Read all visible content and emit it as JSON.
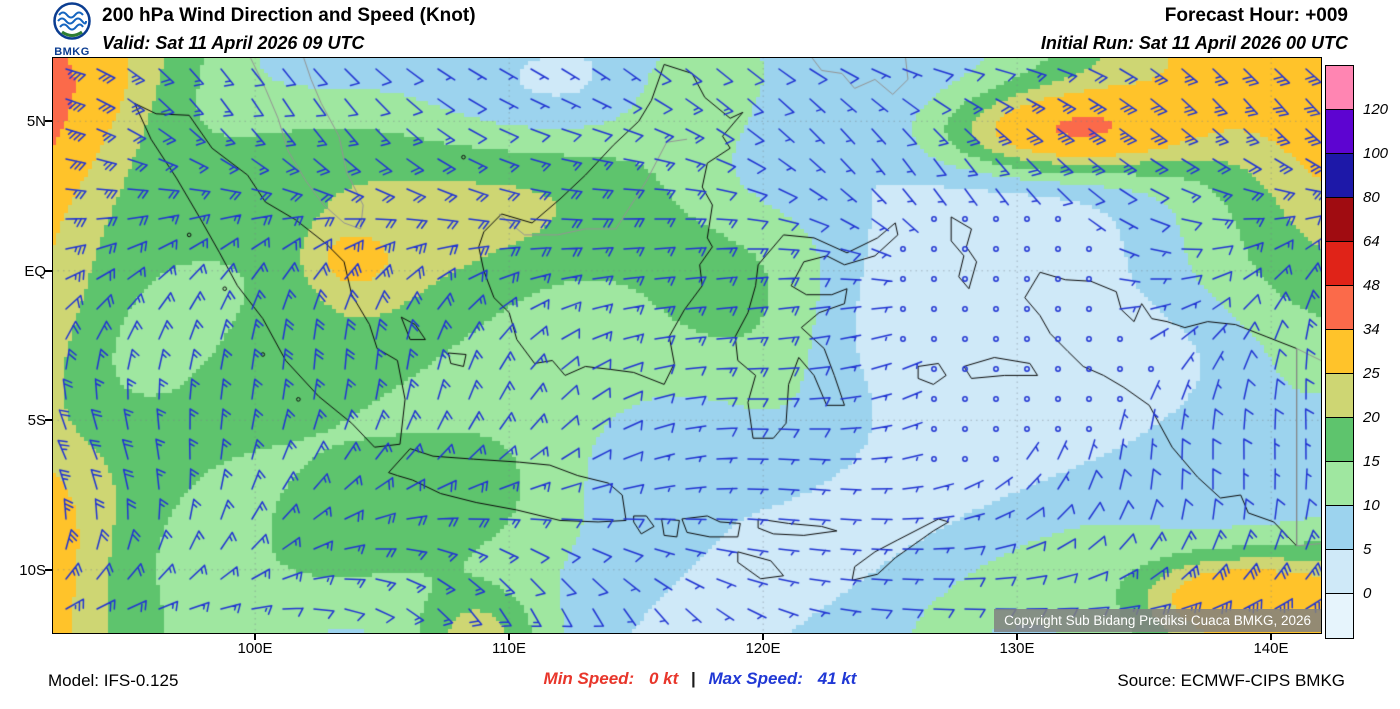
{
  "header": {
    "logo_text": "BMKG",
    "title": "200 hPa Wind Direction and Speed (Knot)",
    "valid": "Valid: Sat 11 April 2026 09 UTC",
    "forecast_hour": "Forecast Hour: +009",
    "initial_run": "Initial Run: Sat 11 April 2026 00 UTC"
  },
  "map": {
    "lat_labels": [
      "5N",
      "EQ",
      "5S",
      "10S"
    ],
    "lon_labels": [
      "100E",
      "110E",
      "120E",
      "130E",
      "140E"
    ],
    "copyright": "Copyright Sub Bidang Prediksi Cuaca BMKG, 2026"
  },
  "legend": {
    "labels_top_to_bottom": [
      "120",
      "100",
      "80",
      "64",
      "48",
      "34",
      "25",
      "20",
      "15",
      "10",
      "5",
      "0"
    ],
    "colors_top_to_bottom": [
      "#ff85b2",
      "#5d04d1",
      "#1d18a8",
      "#a00c11",
      "#e02318",
      "#fb6a4a",
      "#ffc32a",
      "#ced673",
      "#5ec46d",
      "#9fe7a0",
      "#9cd3ee",
      "#cfe9f8",
      "#e6f4fc"
    ]
  },
  "chart_data": {
    "type": "heatmap",
    "variable": "200 hPa wind speed with wind barbs",
    "units": "knot",
    "levels": [
      0,
      5,
      10,
      15,
      20,
      25,
      34,
      48,
      64,
      80,
      100,
      120
    ],
    "min_speed_kt": 0,
    "max_speed_kt": 41
  },
  "footer": {
    "model": "Model: IFS-0.125",
    "min_label": "Min Speed:",
    "min_value": "0 kt",
    "separator": "|",
    "max_label": "Max Speed:",
    "max_value": "41 kt",
    "source": "Source: ECMWF-CIPS BMKG"
  },
  "colors": {
    "barb": "#2134d2",
    "coast": "#0a0a0a",
    "foreign_coast": "#949494",
    "gridline": "rgba(120,130,140,0.5)",
    "min_text": "#e8362b",
    "max_text": "#2038d5",
    "copyright_bg": "#808080"
  }
}
